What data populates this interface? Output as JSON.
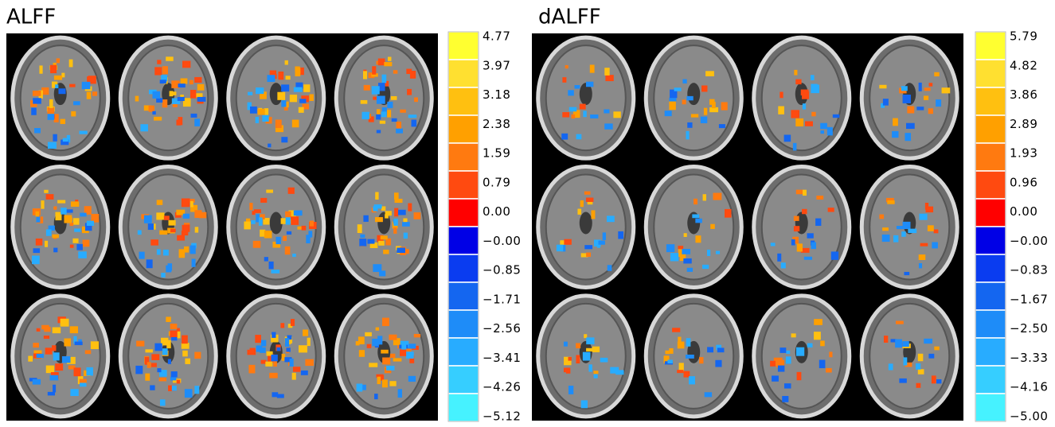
{
  "panels": [
    {
      "title": "ALFF",
      "colorbar_labels": [
        "4.77",
        "3.97",
        "3.18",
        "2.38",
        "1.59",
        "0.79",
        "0.00",
        "−0.00",
        "−0.85",
        "−1.71",
        "−2.56",
        "−3.41",
        "−4.26",
        "−5.12"
      ]
    },
    {
      "title": "dALFF",
      "colorbar_labels": [
        "5.79",
        "4.82",
        "3.86",
        "2.89",
        "1.93",
        "0.96",
        "0.00",
        "−0.00",
        "−0.83",
        "−1.67",
        "−2.50",
        "−3.33",
        "−4.16",
        "−5.00"
      ]
    }
  ]
}
